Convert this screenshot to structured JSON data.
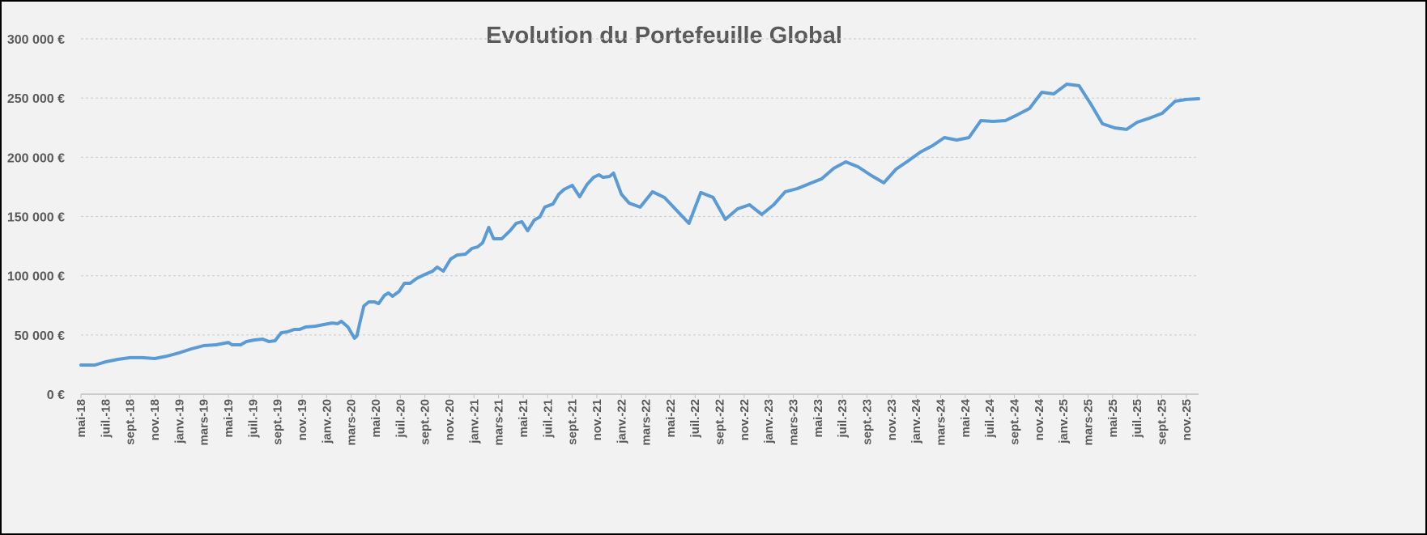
{
  "chart_data": {
    "type": "line",
    "title": "Evolution du Portefeuille Global",
    "xlabel": "",
    "ylabel": "",
    "ylim": [
      0,
      300000
    ],
    "xlim": [
      "2018-05-01",
      "2025-12-01"
    ],
    "grid": true,
    "legend": "none",
    "line_color": "#5b9bd5",
    "y_ticks": [
      {
        "value": 0,
        "label": "0 €"
      },
      {
        "value": 50000,
        "label": "50 000 €"
      },
      {
        "value": 100000,
        "label": "100 000 €"
      },
      {
        "value": 150000,
        "label": "150 000 €"
      },
      {
        "value": 200000,
        "label": "200 000 €"
      },
      {
        "value": 250000,
        "label": "250 000 €"
      },
      {
        "value": 300000,
        "label": "300 000 €"
      }
    ],
    "x_ticks": [
      "mai-18",
      "juil.-18",
      "sept.-18",
      "nov.-18",
      "janv.-19",
      "mars-19",
      "mai-19",
      "juil.-19",
      "sept.-19",
      "nov.-19",
      "janv.-20",
      "mars-20",
      "mai-20",
      "juil.-20",
      "sept.-20",
      "nov.-20",
      "janv.-21",
      "mars-21",
      "mai-21",
      "juil.-21",
      "sept.-21",
      "nov.-21",
      "janv.-22",
      "mars-22",
      "mai-22",
      "juil.-22",
      "sept.-22",
      "nov.-22",
      "janv.-23",
      "mars-23",
      "mai-23",
      "juil.-23",
      "sept.-23",
      "nov.-23",
      "janv.-24",
      "mars-24",
      "mai-24",
      "juil.-24",
      "sept.-24",
      "nov.-24",
      "janv.-25",
      "mars-25",
      "mai-25",
      "juil.-25",
      "sept.-25",
      "nov.-25"
    ],
    "series": [
      {
        "x": [
          "2018-05-01",
          "2018-06-05",
          "2018-07-01",
          "2018-08-01",
          "2018-09-01",
          "2018-10-01",
          "2018-11-01",
          "2018-12-01",
          "2019-01-01",
          "2019-02-01",
          "2019-03-01",
          "2019-04-01",
          "2019-05-01",
          "2019-05-10",
          "2019-06-01",
          "2019-06-15",
          "2019-07-05",
          "2019-07-25",
          "2019-08-10",
          "2019-08-25",
          "2019-09-10",
          "2019-09-25",
          "2019-10-12",
          "2019-10-25",
          "2019-11-10",
          "2019-12-04",
          "2019-12-24",
          "2020-01-14",
          "2020-01-28",
          "2020-02-07",
          "2020-02-23",
          "2020-03-09",
          "2020-03-15",
          "2020-03-23",
          "2020-04-02",
          "2020-04-14",
          "2020-04-28",
          "2020-05-08",
          "2020-05-22",
          "2020-06-02",
          "2020-06-12",
          "2020-06-28",
          "2020-07-11",
          "2020-07-25",
          "2020-08-11",
          "2020-09-01",
          "2020-09-20",
          "2020-10-01",
          "2020-10-16",
          "2020-11-04",
          "2020-11-20",
          "2020-12-10",
          "2020-12-26",
          "2021-01-10",
          "2021-01-22",
          "2021-02-07",
          "2021-02-19",
          "2021-03-09",
          "2021-03-29",
          "2021-04-14",
          "2021-04-28",
          "2021-05-12",
          "2021-05-28",
          "2021-06-12",
          "2021-06-24",
          "2021-07-14",
          "2021-07-28",
          "2021-08-11",
          "2021-09-01",
          "2021-09-19",
          "2021-10-07",
          "2021-10-23",
          "2021-11-06",
          "2021-11-16",
          "2021-12-02",
          "2021-12-12",
          "2022-01-01",
          "2022-01-20",
          "2022-02-17",
          "2022-03-17",
          "2022-04-16",
          "2022-06-16",
          "2022-07-15",
          "2022-08-15",
          "2022-09-15",
          "2022-10-15",
          "2022-11-14",
          "2022-12-14",
          "2023-01-13",
          "2023-02-11",
          "2023-03-11",
          "2023-04-10",
          "2023-05-10",
          "2023-06-10",
          "2023-07-09",
          "2023-08-09",
          "2023-09-12",
          "2023-10-12",
          "2023-11-12",
          "2023-12-11",
          "2024-01-11",
          "2024-02-11",
          "2024-03-10",
          "2024-04-10",
          "2024-05-10",
          "2024-06-09",
          "2024-07-09",
          "2024-08-09",
          "2024-09-08",
          "2024-10-08",
          "2024-11-08",
          "2024-12-07",
          "2025-01-09",
          "2025-02-09",
          "2025-03-08",
          "2025-04-06",
          "2025-05-06",
          "2025-06-05",
          "2025-07-01",
          "2025-08-01",
          "2025-09-02",
          "2025-10-04",
          "2025-11-01",
          "2025-12-01"
        ],
        "values": [
          24600,
          24600,
          27300,
          29400,
          30800,
          30800,
          30100,
          32100,
          34900,
          38300,
          41000,
          41700,
          43700,
          41700,
          41700,
          44400,
          45800,
          46500,
          44400,
          45100,
          51900,
          52600,
          54700,
          54700,
          56700,
          57400,
          58800,
          60100,
          59500,
          61500,
          56700,
          47200,
          49200,
          61500,
          74500,
          77900,
          77900,
          76500,
          83400,
          85400,
          82700,
          86800,
          93600,
          93600,
          97700,
          101100,
          103900,
          107300,
          103900,
          114100,
          117500,
          118200,
          123000,
          124400,
          127800,
          140800,
          131200,
          131200,
          138000,
          144200,
          145600,
          138000,
          146900,
          149700,
          157900,
          160600,
          168800,
          172900,
          176300,
          166700,
          177000,
          183100,
          185200,
          183100,
          183800,
          186600,
          168800,
          161300,
          157900,
          170900,
          166100,
          144200,
          170200,
          166100,
          147600,
          156500,
          159900,
          151700,
          159900,
          170900,
          173600,
          177700,
          181800,
          190700,
          196100,
          192000,
          184500,
          178400,
          190000,
          196800,
          204300,
          209800,
          216600,
          214600,
          216600,
          231000,
          230300,
          231000,
          235800,
          241200,
          254900,
          253500,
          261700,
          260400,
          244700,
          228300,
          224800,
          223500,
          229600,
          233000,
          237100,
          247400,
          248800,
          249400
        ]
      }
    ]
  }
}
